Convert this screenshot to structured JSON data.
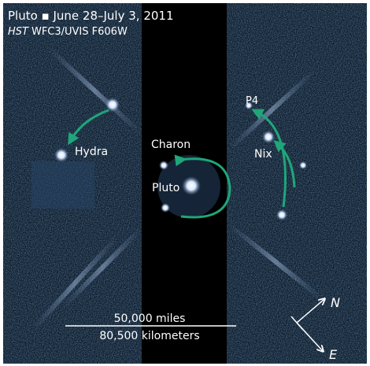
{
  "header": {
    "title": "Pluto ▪ June 28–July 3, 2011",
    "instrument_prefix": "HST",
    "instrument": "WFC3/UVIS F606W"
  },
  "labels": {
    "hydra": "Hydra",
    "charon": "Charon",
    "pluto": "Pluto",
    "p4": "P4",
    "nix": "Nix"
  },
  "scale_bar": {
    "miles": "50,000 miles",
    "kilometers": "80,500 kilometers"
  },
  "compass": {
    "north": "N",
    "east": "E"
  }
}
